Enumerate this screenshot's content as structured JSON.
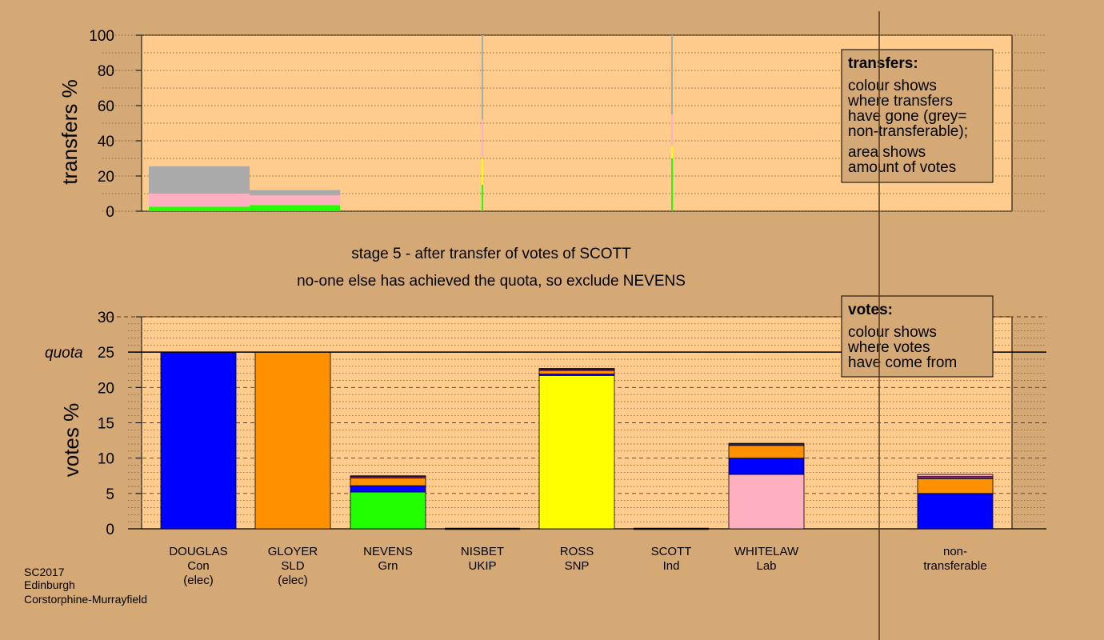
{
  "chart_data": [
    {
      "type": "bar",
      "ylabel": "transfers %",
      "ylim": [
        0,
        100
      ],
      "yticks": [
        0,
        20,
        40,
        60,
        80,
        100
      ],
      "legend": {
        "title": "transfers:",
        "lines1": [
          "colour shows",
          "where transfers",
          "have gone (grey=",
          "non-transferable);"
        ],
        "lines2": [
          "area shows",
          "amount of votes"
        ]
      },
      "bars": [
        {
          "segments": [
            {
              "color": "#22ff00",
              "value": 2.5
            },
            {
              "color": "#ffb0c0",
              "value": 7.5
            },
            {
              "color": "#aaaaaa",
              "value": 15.5
            }
          ]
        },
        {
          "segments": [
            {
              "color": "#22ff00",
              "value": 3.5
            },
            {
              "color": "#ffb0c0",
              "value": 5.5
            },
            {
              "color": "#aaaaaa",
              "value": 3
            }
          ]
        }
      ],
      "spikes": [
        {
          "segments": [
            {
              "color": "#22ff00",
              "value": 15
            },
            {
              "color": "#ffff00",
              "value": 15
            },
            {
              "color": "#ffb0c0",
              "value": 22
            },
            {
              "color": "#aaaaaa",
              "value": 48
            }
          ]
        },
        {
          "segments": [
            {
              "color": "#22ff00",
              "value": 30
            },
            {
              "color": "#ffff00",
              "value": 7
            },
            {
              "color": "#ffb0c0",
              "value": 18
            },
            {
              "color": "#aaaaaa",
              "value": 45
            }
          ]
        }
      ]
    },
    {
      "type": "bar",
      "ylabel": "votes %",
      "ylim": [
        0,
        30
      ],
      "yticks": [
        0,
        5,
        10,
        15,
        20,
        25,
        30
      ],
      "quota": {
        "label": "quota",
        "value": 25
      },
      "legend": {
        "title": "votes:",
        "lines": [
          "colour shows",
          "where votes",
          "have come from"
        ]
      },
      "candidates": [
        {
          "name": "DOUGLAS",
          "party": "Con",
          "status": "(elec)",
          "segments": [
            {
              "color": "#0000ff",
              "value": 25
            }
          ]
        },
        {
          "name": "GLOYER",
          "party": "SLD",
          "status": "(elec)",
          "segments": [
            {
              "color": "#ff9000",
              "value": 25
            }
          ]
        },
        {
          "name": "NEVENS",
          "party": "Grn",
          "status": "",
          "segments": [
            {
              "color": "#22ff00",
              "value": 5.2
            },
            {
              "color": "#0000ff",
              "value": 0.9
            },
            {
              "color": "#ff9000",
              "value": 1.1
            },
            {
              "color": "#7a2a8a",
              "value": 0.2
            },
            {
              "color": "#ffb0c0",
              "value": 0.1
            }
          ]
        },
        {
          "name": "NISBET",
          "party": "UKIP",
          "status": "",
          "segments": []
        },
        {
          "name": "ROSS",
          "party": "SNP",
          "status": "",
          "segments": [
            {
              "color": "#ffff00",
              "value": 21.7
            },
            {
              "color": "#0000ff",
              "value": 0.2
            },
            {
              "color": "#ff9000",
              "value": 0.5
            },
            {
              "color": "#7a2a8a",
              "value": 0.2
            },
            {
              "color": "#ffb0c0",
              "value": 0.1
            }
          ]
        },
        {
          "name": "SCOTT",
          "party": "Ind",
          "status": "",
          "segments": []
        },
        {
          "name": "WHITELAW",
          "party": "Lab",
          "status": "",
          "segments": [
            {
              "color": "#ffb0c0",
              "value": 7.7
            },
            {
              "color": "#0000ff",
              "value": 2.3
            },
            {
              "color": "#ff9000",
              "value": 1.8
            },
            {
              "color": "#7a2a8a",
              "value": 0.2
            },
            {
              "color": "#ffff00",
              "value": 0.1
            }
          ]
        },
        {
          "name": "non-",
          "party": "transferable",
          "status": "",
          "segments": [
            {
              "color": "#0000ff",
              "value": 5.0
            },
            {
              "color": "#ff9000",
              "value": 2.1
            },
            {
              "color": "#7a2a8a",
              "value": 0.3
            },
            {
              "color": "#ffb0c0",
              "value": 0.3
            }
          ]
        }
      ]
    }
  ],
  "captions": {
    "stage": "stage 5 - after transfer of votes of SCOTT",
    "action": "no-one else has achieved the quota, so exclude NEVENS"
  },
  "footer": [
    "SC2017",
    "Edinburgh",
    "Corstorphine-Murrayfield"
  ]
}
